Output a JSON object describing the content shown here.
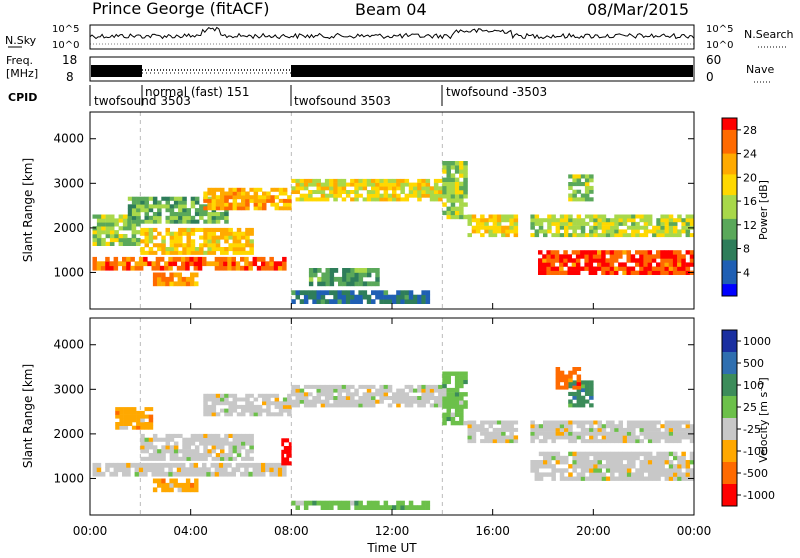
{
  "header": {
    "station": "Prince George (fitACF)",
    "beam": "Beam 04",
    "date": "08/Mar/2015"
  },
  "top_panels": {
    "nsky_label": "N.Sky",
    "nsky_ticks": [
      "10^5",
      "10^0"
    ],
    "nsearch_label": "N.Search",
    "nsearch_ticks": [
      "10^5",
      "10^0"
    ],
    "freq_label_1": "Freq.",
    "freq_label_2": "[MHz]",
    "freq_ticks": [
      "18",
      "8"
    ],
    "nave_label": "Nave",
    "nave_ticks": [
      "60",
      "0"
    ],
    "cpid_label": "CPID",
    "cpid_entries": [
      {
        "start": 0.0,
        "end": 2.0,
        "label": "twofsound 3503",
        "row": 1
      },
      {
        "start": 2.0,
        "end": 8.0,
        "label": "normal (fast) 151",
        "row": 0
      },
      {
        "start": 8.0,
        "end": 14.0,
        "label": "twofsound 3503",
        "row": 1
      },
      {
        "start": 14.0,
        "end": 24.0,
        "label": "twofsound -3503",
        "row": 0
      }
    ]
  },
  "chart_data": [
    {
      "type": "heatmap",
      "panel": "power",
      "ylabel": "Slant Range [km]",
      "ylim": [
        180,
        4600
      ],
      "yticks": [
        1000,
        2000,
        3000,
        4000
      ],
      "xlim": [
        0,
        24
      ],
      "colorbar_label": "Power [dB]",
      "colorbar_ticks": [
        "28",
        "24",
        "20",
        "16",
        "12",
        "8",
        "4"
      ],
      "colorbar_range": [
        0,
        30
      ],
      "colorbar_colors": [
        "#0000ff",
        "#1f5fb4",
        "#2e7d5a",
        "#5aa85a",
        "#a8d84a",
        "#ffd800",
        "#ffaa00",
        "#ff6a00",
        "#ff0000"
      ],
      "regions": [
        {
          "x0": 0.1,
          "x1": 7.8,
          "y0": 1050,
          "y1": 1350,
          "v": 26
        },
        {
          "x0": 0.1,
          "x1": 2.0,
          "y0": 1600,
          "y1": 2300,
          "v": 14
        },
        {
          "x0": 2.0,
          "x1": 6.5,
          "y0": 1400,
          "y1": 2000,
          "v": 20
        },
        {
          "x0": 1.5,
          "x1": 5.5,
          "y0": 2100,
          "y1": 2700,
          "v": 12
        },
        {
          "x0": 4.5,
          "x1": 8.0,
          "y0": 2400,
          "y1": 2900,
          "v": 22
        },
        {
          "x0": 8.0,
          "x1": 14.0,
          "y0": 2600,
          "y1": 3100,
          "v": 18
        },
        {
          "x0": 2.5,
          "x1": 4.3,
          "y0": 700,
          "y1": 1000,
          "v": 24
        },
        {
          "x0": 8.7,
          "x1": 11.5,
          "y0": 700,
          "y1": 1100,
          "v": 10
        },
        {
          "x0": 8.0,
          "x1": 13.5,
          "y0": 300,
          "y1": 600,
          "v": 6
        },
        {
          "x0": 14.0,
          "x1": 15.0,
          "y0": 2200,
          "y1": 3500,
          "v": 14
        },
        {
          "x0": 15.0,
          "x1": 17.0,
          "y0": 1800,
          "y1": 2300,
          "v": 18
        },
        {
          "x0": 17.8,
          "x1": 24.0,
          "y0": 950,
          "y1": 1500,
          "v": 28
        },
        {
          "x0": 17.5,
          "x1": 24.0,
          "y0": 1800,
          "y1": 2300,
          "v": 16
        },
        {
          "x0": 19.0,
          "x1": 20.0,
          "y0": 2600,
          "y1": 3200,
          "v": 14
        }
      ]
    },
    {
      "type": "heatmap",
      "panel": "velocity",
      "ylabel": "Slant Range [km]",
      "ylim": [
        180,
        4600
      ],
      "yticks": [
        1000,
        2000,
        3000,
        4000
      ],
      "xlim": [
        0,
        24
      ],
      "xlabel": "Time UT",
      "xticks": [
        "00:00",
        "04:00",
        "08:00",
        "12:00",
        "16:00",
        "20:00",
        "00:00"
      ],
      "xtick_values": [
        0,
        4,
        8,
        12,
        16,
        20,
        24
      ],
      "colorbar_label": "Velocity [m s⁻¹]",
      "colorbar_ticks": [
        "1000",
        "500",
        "100",
        "25",
        "-25",
        "-100",
        "-500",
        "-1000"
      ],
      "colorbar_colors": [
        "#1a2fa0",
        "#2f6fb0",
        "#3c8c5a",
        "#6cc04a",
        "#c8c8c8",
        "#ffa800",
        "#ff6a00",
        "#ff0000"
      ],
      "regions": [
        {
          "x0": 0.1,
          "x1": 7.8,
          "y0": 1050,
          "y1": 1350,
          "c": 4
        },
        {
          "x0": 2.0,
          "x1": 6.5,
          "y0": 1400,
          "y1": 2000,
          "c": 4
        },
        {
          "x0": 4.5,
          "x1": 8.0,
          "y0": 2400,
          "y1": 2900,
          "c": 4
        },
        {
          "x0": 8.0,
          "x1": 14.0,
          "y0": 2600,
          "y1": 3100,
          "c": 4
        },
        {
          "x0": 1.0,
          "x1": 2.5,
          "y0": 2100,
          "y1": 2600,
          "c": 5
        },
        {
          "x0": 2.5,
          "x1": 4.3,
          "y0": 700,
          "y1": 1000,
          "c": 5
        },
        {
          "x0": 7.6,
          "x1": 8.0,
          "y0": 1300,
          "y1": 1900,
          "c": 7
        },
        {
          "x0": 8.0,
          "x1": 13.5,
          "y0": 300,
          "y1": 500,
          "c": 3
        },
        {
          "x0": 14.0,
          "x1": 15.0,
          "y0": 2200,
          "y1": 3400,
          "c": 3
        },
        {
          "x0": 15.0,
          "x1": 17.0,
          "y0": 1800,
          "y1": 2300,
          "c": 4
        },
        {
          "x0": 17.5,
          "x1": 24.0,
          "y0": 950,
          "y1": 1600,
          "c": 4
        },
        {
          "x0": 17.5,
          "x1": 24.0,
          "y0": 1800,
          "y1": 2300,
          "c": 4
        },
        {
          "x0": 19.0,
          "x1": 20.0,
          "y0": 2600,
          "y1": 3200,
          "c": 2
        },
        {
          "x0": 18.5,
          "x1": 19.5,
          "y0": 3000,
          "y1": 3500,
          "c": 6
        }
      ]
    }
  ]
}
